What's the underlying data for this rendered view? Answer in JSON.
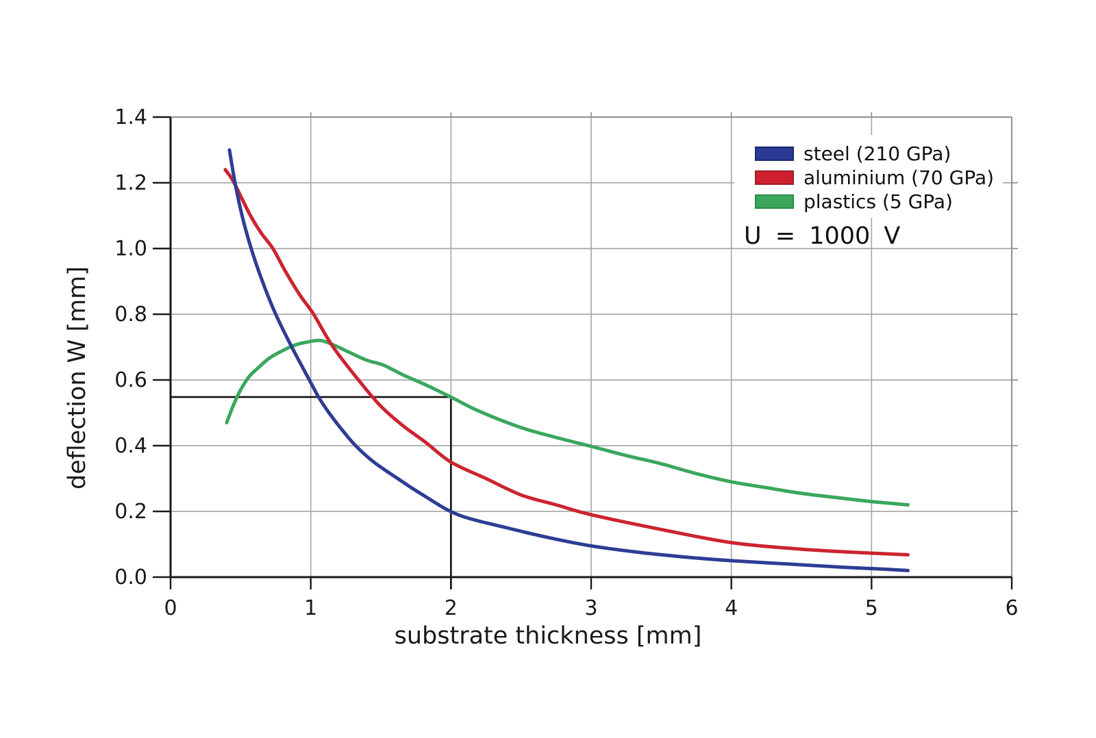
{
  "figure": {
    "background": "#ffffff"
  },
  "axes": {
    "xlabel": "substrate thickness [mm]",
    "ylabel": "deflection W [mm]"
  },
  "annotation": "U = 1000 V",
  "legend": {
    "items": [
      {
        "label": "steel (210 GPa)",
        "color": "#2b3a94",
        "border_color": "#1c2a6e"
      },
      {
        "label": "aluminium (70 GPa)",
        "color": "#d02030",
        "border_color": "#9c1a26"
      },
      {
        "label": "plastics (5 GPa)",
        "color": "#3aa75d",
        "border_color": "#2b8a4a"
      }
    ]
  },
  "colors": {
    "grid": "#a9a9a9",
    "plot_border": "#8f8f8f",
    "axis": "#1a1a1a",
    "tick_text": "#1a1a1a",
    "reference_line": "#111111"
  },
  "chart_data": {
    "type": "line",
    "title": "",
    "xlabel": "substrate thickness [mm]",
    "ylabel": "deflection W [mm]",
    "xlim": [
      0,
      6
    ],
    "ylim": [
      0,
      1.4
    ],
    "grid": true,
    "legend_position": "top-right-inside",
    "annotation": "U = 1000 V",
    "xticks": {
      "values": [
        0,
        1,
        2,
        3,
        4,
        5,
        6
      ],
      "labels": [
        "0",
        "1",
        "2",
        "3",
        "4",
        "5",
        "6"
      ]
    },
    "yticks": {
      "values": [
        0,
        0.2,
        0.4,
        0.6,
        0.8,
        1.0,
        1.2,
        1.4
      ],
      "labels": [
        "0.0",
        "0.2",
        "0.4",
        "0.6",
        "0.8",
        "1.0",
        "1.2",
        "1.4"
      ]
    },
    "series": [
      {
        "name": "steel (210 GPa)",
        "slug": "steel",
        "color": "#2e3d94",
        "points": [
          [
            0.42,
            1.3
          ],
          [
            0.46,
            1.2
          ],
          [
            0.51,
            1.1
          ],
          [
            0.575,
            1.0
          ],
          [
            0.655,
            0.9
          ],
          [
            0.75,
            0.8
          ],
          [
            0.865,
            0.7
          ],
          [
            0.99,
            0.6
          ],
          [
            1.06,
            0.545
          ],
          [
            1.13,
            0.5
          ],
          [
            1.22,
            0.45
          ],
          [
            1.32,
            0.4
          ],
          [
            1.45,
            0.35
          ],
          [
            1.62,
            0.3
          ],
          [
            1.8,
            0.25
          ],
          [
            2.05,
            0.19
          ],
          [
            2.4,
            0.15
          ],
          [
            2.7,
            0.12
          ],
          [
            3.0,
            0.095
          ],
          [
            3.35,
            0.075
          ],
          [
            3.7,
            0.06
          ],
          [
            4.0,
            0.05
          ],
          [
            4.4,
            0.04
          ],
          [
            4.8,
            0.03
          ],
          [
            5.05,
            0.025
          ],
          [
            5.26,
            0.02
          ]
        ]
      },
      {
        "name": "aluminium (70 GPa)",
        "slug": "aluminium",
        "color": "#cc2430",
        "points": [
          [
            0.39,
            1.24
          ],
          [
            0.44,
            1.21
          ],
          [
            0.5,
            1.16
          ],
          [
            0.57,
            1.1
          ],
          [
            0.65,
            1.045
          ],
          [
            0.73,
            1.0
          ],
          [
            0.82,
            0.93
          ],
          [
            0.92,
            0.86
          ],
          [
            1.02,
            0.8
          ],
          [
            1.16,
            0.7
          ],
          [
            1.34,
            0.6
          ],
          [
            1.5,
            0.52
          ],
          [
            1.66,
            0.46
          ],
          [
            1.82,
            0.41
          ],
          [
            2.0,
            0.35
          ],
          [
            2.25,
            0.3
          ],
          [
            2.5,
            0.25
          ],
          [
            2.75,
            0.22
          ],
          [
            3.0,
            0.19
          ],
          [
            3.5,
            0.145
          ],
          [
            4.0,
            0.105
          ],
          [
            4.5,
            0.085
          ],
          [
            5.0,
            0.073
          ],
          [
            5.26,
            0.068
          ]
        ]
      },
      {
        "name": "plastics (5 GPa)",
        "slug": "plastics",
        "color": "#3aa75d",
        "points": [
          [
            0.4,
            0.47
          ],
          [
            0.45,
            0.525
          ],
          [
            0.5,
            0.57
          ],
          [
            0.56,
            0.61
          ],
          [
            0.62,
            0.635
          ],
          [
            0.7,
            0.665
          ],
          [
            0.78,
            0.685
          ],
          [
            0.88,
            0.705
          ],
          [
            0.97,
            0.715
          ],
          [
            1.07,
            0.72
          ],
          [
            1.17,
            0.705
          ],
          [
            1.27,
            0.685
          ],
          [
            1.4,
            0.66
          ],
          [
            1.52,
            0.645
          ],
          [
            1.66,
            0.615
          ],
          [
            1.82,
            0.585
          ],
          [
            2.0,
            0.548
          ],
          [
            2.2,
            0.505
          ],
          [
            2.5,
            0.455
          ],
          [
            2.75,
            0.425
          ],
          [
            3.0,
            0.398
          ],
          [
            3.25,
            0.37
          ],
          [
            3.5,
            0.345
          ],
          [
            3.75,
            0.315
          ],
          [
            4.0,
            0.29
          ],
          [
            4.25,
            0.272
          ],
          [
            4.5,
            0.255
          ],
          [
            4.75,
            0.242
          ],
          [
            5.0,
            0.23
          ],
          [
            5.26,
            0.22
          ]
        ]
      }
    ],
    "reference_lines": [
      {
        "type": "h",
        "y": 0.548,
        "x0": 0,
        "x1": 2
      },
      {
        "type": "v",
        "x": 2,
        "y0": 0,
        "y1": 0.548
      }
    ]
  }
}
